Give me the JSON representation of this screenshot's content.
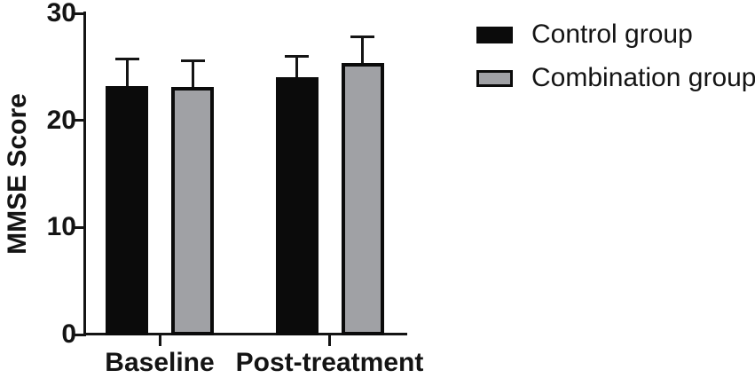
{
  "chart_data": {
    "type": "bar",
    "title": "",
    "xlabel": "",
    "ylabel": "MMSE Score",
    "categories": [
      "Baseline",
      "Post-treatment"
    ],
    "series": [
      {
        "name": "Control group",
        "color": "#0b0b0b",
        "values": [
          23.2,
          24.0
        ],
        "errors_upper": [
          2.5,
          2.0
        ]
      },
      {
        "name": "Combination group",
        "color": "#a0a1a5",
        "values": [
          23.1,
          25.4
        ],
        "errors_upper": [
          2.5,
          2.4
        ]
      }
    ],
    "ylim": [
      0,
      30
    ],
    "y_ticks": [
      0,
      10,
      20,
      30
    ],
    "grid": false,
    "error_bars": "upper-only",
    "legend_position": "right"
  },
  "colors": {
    "axis": "#141414",
    "control_fill": "#0b0b0b",
    "combination_fill": "#a0a1a5",
    "bar_border": "#0b0b0b"
  }
}
